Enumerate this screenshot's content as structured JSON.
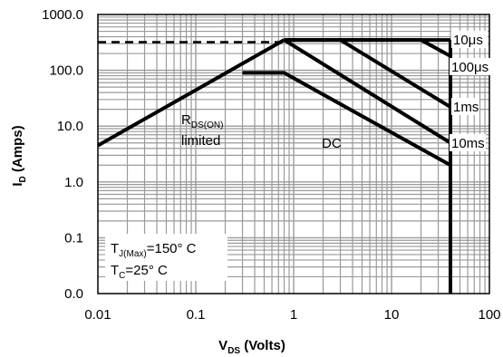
{
  "chart_data": {
    "type": "line",
    "title": "",
    "xlabel": {
      "main": "V",
      "sub": "DS",
      "rest": " (Volts)"
    },
    "ylabel": {
      "main": "I",
      "sub": "D",
      "rest": " (Amps)"
    },
    "x_scale": "log",
    "y_scale": "log",
    "xlim": [
      0.01,
      100
    ],
    "ylim_decades": [
      0.0,
      1000.0
    ],
    "x_ticks": [
      {
        "value": 0.01,
        "label": "0.01"
      },
      {
        "value": 0.1,
        "label": "0.1"
      },
      {
        "value": 1,
        "label": "1"
      },
      {
        "value": 10,
        "label": "10"
      },
      {
        "value": 100,
        "label": "100"
      }
    ],
    "y_ticks": [
      {
        "value": 1000,
        "label": "1000.0"
      },
      {
        "value": 100,
        "label": "100.0"
      },
      {
        "value": 10,
        "label": "10.0"
      },
      {
        "value": 1,
        "label": "1.0"
      },
      {
        "value": 0.1,
        "label": "0.1"
      },
      {
        "value": 0.01,
        "label": "0.0"
      }
    ],
    "grid": true,
    "series": [
      {
        "name": "10μs",
        "points": [
          [
            0.8,
            350
          ],
          [
            40,
            350
          ]
        ]
      },
      {
        "name": "100μs",
        "points": [
          [
            0.8,
            350
          ],
          [
            20,
            350
          ],
          [
            40,
            180
          ]
        ]
      },
      {
        "name": "1ms",
        "points": [
          [
            0.8,
            350
          ],
          [
            3,
            350
          ],
          [
            40,
            22
          ]
        ]
      },
      {
        "name": "10ms",
        "points": [
          [
            0.8,
            350
          ],
          [
            40,
            5
          ]
        ]
      },
      {
        "name": "DC",
        "points": [
          [
            0.3,
            90
          ],
          [
            0.8,
            90
          ],
          [
            40,
            2
          ]
        ]
      }
    ],
    "rds_limit_line": [
      [
        0.01,
        4.5
      ],
      [
        0.8,
        350
      ]
    ],
    "current_limit_dashed": [
      [
        0.01,
        320
      ],
      [
        0.8,
        320
      ]
    ],
    "vmax_line": [
      [
        40,
        350
      ],
      [
        40,
        0.01
      ]
    ],
    "annotations": {
      "rds": {
        "main": "R",
        "sub": "DS(ON)",
        "line2": "limited"
      },
      "dc": "DC",
      "tj": {
        "main": "T",
        "sub": "J(Max)",
        "rest": "=150° C"
      },
      "tc": {
        "main": "T",
        "sub": "C",
        "rest": "=25° C"
      }
    }
  }
}
